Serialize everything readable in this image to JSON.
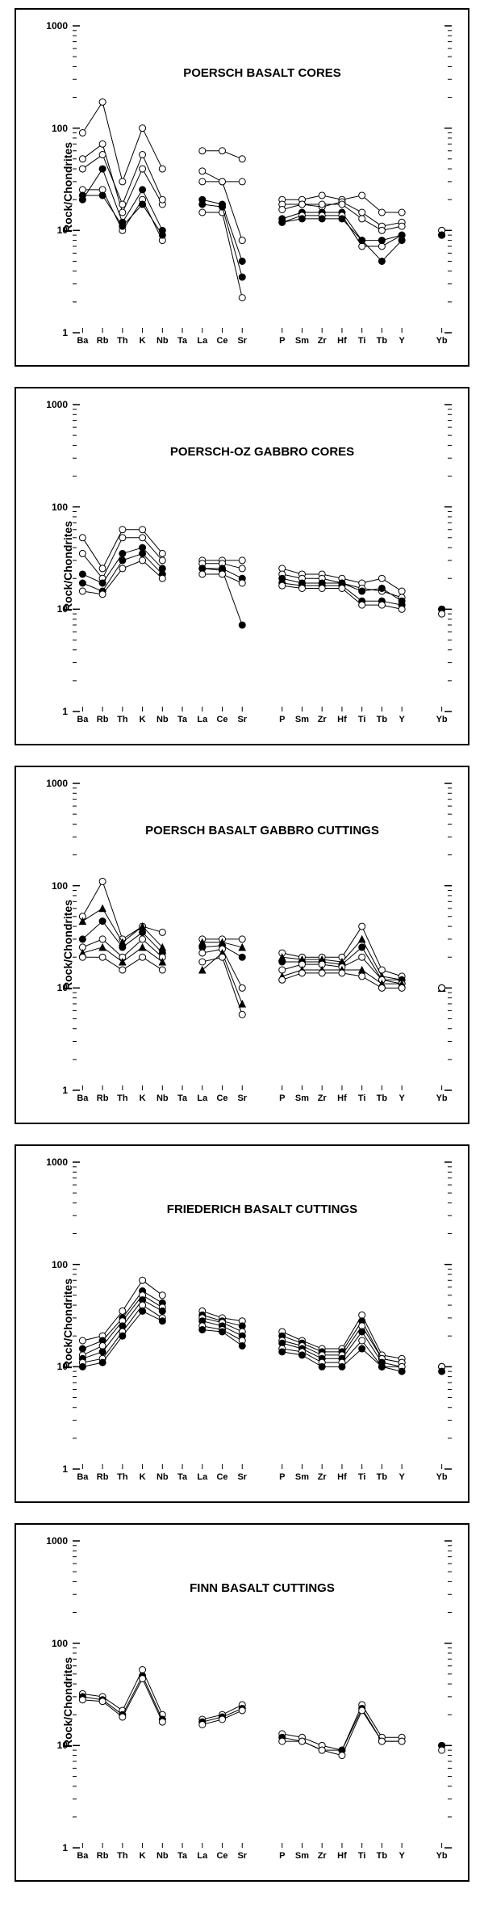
{
  "global": {
    "ylabel": "Rock/Chondrites",
    "yticks": [
      1,
      10,
      100,
      1000
    ],
    "ylim": [
      1,
      1000
    ],
    "xcats": [
      "Ba",
      "Rb",
      "Th",
      "K",
      "Nb",
      "Ta",
      "La",
      "Ce",
      "Sr",
      "",
      "P",
      "Sm",
      "Zr",
      "Hf",
      "Ti",
      "Tb",
      "Y",
      "",
      "Yb"
    ],
    "colors": {
      "bg": "#ffffff",
      "axis": "#000000",
      "line": "#000000",
      "marker_stroke": "#000000"
    },
    "marker_size": 4,
    "line_width": 1
  },
  "panels": [
    {
      "title": "POERSCH BASALT CORES",
      "series": [
        {
          "marker": "o",
          "fill": "none",
          "data": [
            90,
            180,
            30,
            100,
            40,
            null,
            60,
            60,
            50,
            null,
            20,
            20,
            22,
            20,
            22,
            15,
            15,
            null,
            10
          ]
        },
        {
          "marker": "o",
          "fill": "none",
          "data": [
            50,
            70,
            15,
            40,
            18,
            null,
            30,
            30,
            30,
            null,
            18,
            18,
            17,
            19,
            15,
            11,
            12,
            null,
            10
          ]
        },
        {
          "marker": "o",
          "fill": "none",
          "data": [
            40,
            55,
            18,
            55,
            20,
            null,
            38,
            30,
            8,
            null,
            16,
            18,
            18,
            18,
            13,
            10,
            11,
            null,
            9
          ]
        },
        {
          "marker": "o",
          "fill": "#000",
          "data": [
            20,
            40,
            12,
            25,
            10,
            null,
            20,
            18,
            5,
            null,
            13,
            15,
            15,
            15,
            8,
            5,
            8,
            null,
            9
          ]
        },
        {
          "marker": "o",
          "fill": "none",
          "data": [
            25,
            25,
            10,
            20,
            8,
            null,
            15,
            15,
            2.2,
            null,
            12,
            14,
            14,
            14,
            7,
            7,
            9,
            null,
            9
          ]
        },
        {
          "marker": "o",
          "fill": "#000",
          "data": [
            22,
            22,
            11,
            18,
            9,
            null,
            18,
            17,
            3.5,
            null,
            12,
            13,
            13,
            13,
            8,
            8,
            9,
            null,
            9
          ]
        }
      ]
    },
    {
      "title": "POERSCH-OZ GABBRO CORES",
      "series": [
        {
          "marker": "o",
          "fill": "none",
          "data": [
            50,
            25,
            60,
            60,
            35,
            null,
            30,
            30,
            30,
            null,
            25,
            22,
            22,
            20,
            18,
            20,
            15,
            null,
            10
          ]
        },
        {
          "marker": "o",
          "fill": "none",
          "data": [
            35,
            20,
            50,
            50,
            30,
            null,
            28,
            28,
            25,
            null,
            22,
            20,
            20,
            18,
            16,
            15,
            13,
            null,
            10
          ]
        },
        {
          "marker": "o",
          "fill": "#000",
          "data": [
            22,
            18,
            35,
            40,
            25,
            null,
            25,
            25,
            20,
            null,
            20,
            18,
            18,
            18,
            15,
            16,
            12,
            null,
            10
          ]
        },
        {
          "marker": "o",
          "fill": "#000",
          "data": [
            18,
            15,
            30,
            35,
            22,
            null,
            25,
            24,
            7,
            null,
            18,
            17,
            17,
            17,
            12,
            12,
            11,
            null,
            9
          ]
        },
        {
          "marker": "o",
          "fill": "none",
          "data": [
            15,
            14,
            25,
            30,
            20,
            null,
            22,
            22,
            18,
            null,
            17,
            16,
            16,
            16,
            11,
            11,
            10,
            null,
            9
          ]
        }
      ]
    },
    {
      "title": "POERSCH BASALT GABBRO CUTTINGS",
      "series": [
        {
          "marker": "o",
          "fill": "none",
          "data": [
            50,
            110,
            30,
            40,
            35,
            null,
            30,
            30,
            30,
            null,
            22,
            20,
            20,
            20,
            40,
            15,
            13,
            null,
            10
          ]
        },
        {
          "marker": "tri",
          "fill": "#000",
          "data": [
            45,
            60,
            28,
            40,
            25,
            null,
            28,
            28,
            25,
            null,
            20,
            19,
            19,
            18,
            30,
            13,
            12,
            null,
            10
          ]
        },
        {
          "marker": "o",
          "fill": "#000",
          "data": [
            30,
            45,
            25,
            35,
            22,
            null,
            25,
            26,
            20,
            null,
            18,
            18,
            18,
            17,
            25,
            12,
            12,
            null,
            10
          ]
        },
        {
          "marker": "o",
          "fill": "none",
          "data": [
            25,
            30,
            20,
            30,
            20,
            null,
            22,
            24,
            10,
            null,
            15,
            17,
            17,
            16,
            20,
            12,
            11,
            null,
            10
          ]
        },
        {
          "marker": "tri",
          "fill": "#000",
          "data": [
            22,
            25,
            18,
            25,
            18,
            null,
            15,
            22,
            7,
            null,
            13,
            15,
            15,
            15,
            15,
            11,
            11,
            null,
            10
          ]
        },
        {
          "marker": "o",
          "fill": "none",
          "data": [
            20,
            20,
            15,
            20,
            15,
            null,
            18,
            20,
            5.5,
            null,
            12,
            14,
            14,
            14,
            13,
            10,
            10,
            null,
            10
          ]
        }
      ]
    },
    {
      "title": "FRIEDERICH BASALT CUTTINGS",
      "series": [
        {
          "marker": "o",
          "fill": "none",
          "data": [
            18,
            20,
            35,
            70,
            50,
            null,
            35,
            30,
            28,
            null,
            22,
            18,
            15,
            15,
            32,
            13,
            12,
            null,
            10
          ]
        },
        {
          "marker": "o",
          "fill": "#000",
          "data": [
            15,
            18,
            30,
            55,
            42,
            null,
            32,
            28,
            25,
            null,
            20,
            17,
            14,
            14,
            28,
            12,
            11,
            null,
            10
          ]
        },
        {
          "marker": "o",
          "fill": "none",
          "data": [
            13,
            16,
            28,
            50,
            38,
            null,
            30,
            27,
            22,
            null,
            18,
            16,
            13,
            13,
            25,
            12,
            11,
            null,
            10
          ]
        },
        {
          "marker": "o",
          "fill": "#000",
          "data": [
            12,
            14,
            25,
            45,
            35,
            null,
            28,
            25,
            20,
            null,
            17,
            15,
            12,
            12,
            22,
            11,
            10,
            null,
            10
          ]
        },
        {
          "marker": "o",
          "fill": "none",
          "data": [
            11,
            12,
            22,
            40,
            30,
            null,
            25,
            23,
            18,
            null,
            15,
            14,
            11,
            11,
            18,
            10,
            10,
            null,
            10
          ]
        },
        {
          "marker": "o",
          "fill": "#000",
          "data": [
            10,
            11,
            20,
            35,
            28,
            null,
            23,
            22,
            16,
            null,
            14,
            13,
            10,
            10,
            15,
            10,
            9,
            null,
            9
          ]
        }
      ]
    },
    {
      "title": "FINN BASALT CUTTINGS",
      "series": [
        {
          "marker": "o",
          "fill": "none",
          "data": [
            32,
            30,
            22,
            55,
            20,
            null,
            18,
            20,
            25,
            null,
            13,
            12,
            10,
            9,
            25,
            12,
            12,
            null,
            10
          ]
        },
        {
          "marker": "o",
          "fill": "#000",
          "data": [
            30,
            28,
            20,
            48,
            18,
            null,
            17,
            19,
            23,
            null,
            12,
            11,
            9,
            9,
            23,
            11,
            11,
            null,
            10
          ]
        },
        {
          "marker": "o",
          "fill": "none",
          "data": [
            28,
            27,
            19,
            45,
            17,
            null,
            16,
            18,
            22,
            null,
            11,
            11,
            9,
            8,
            22,
            11,
            11,
            null,
            9
          ]
        }
      ]
    }
  ]
}
